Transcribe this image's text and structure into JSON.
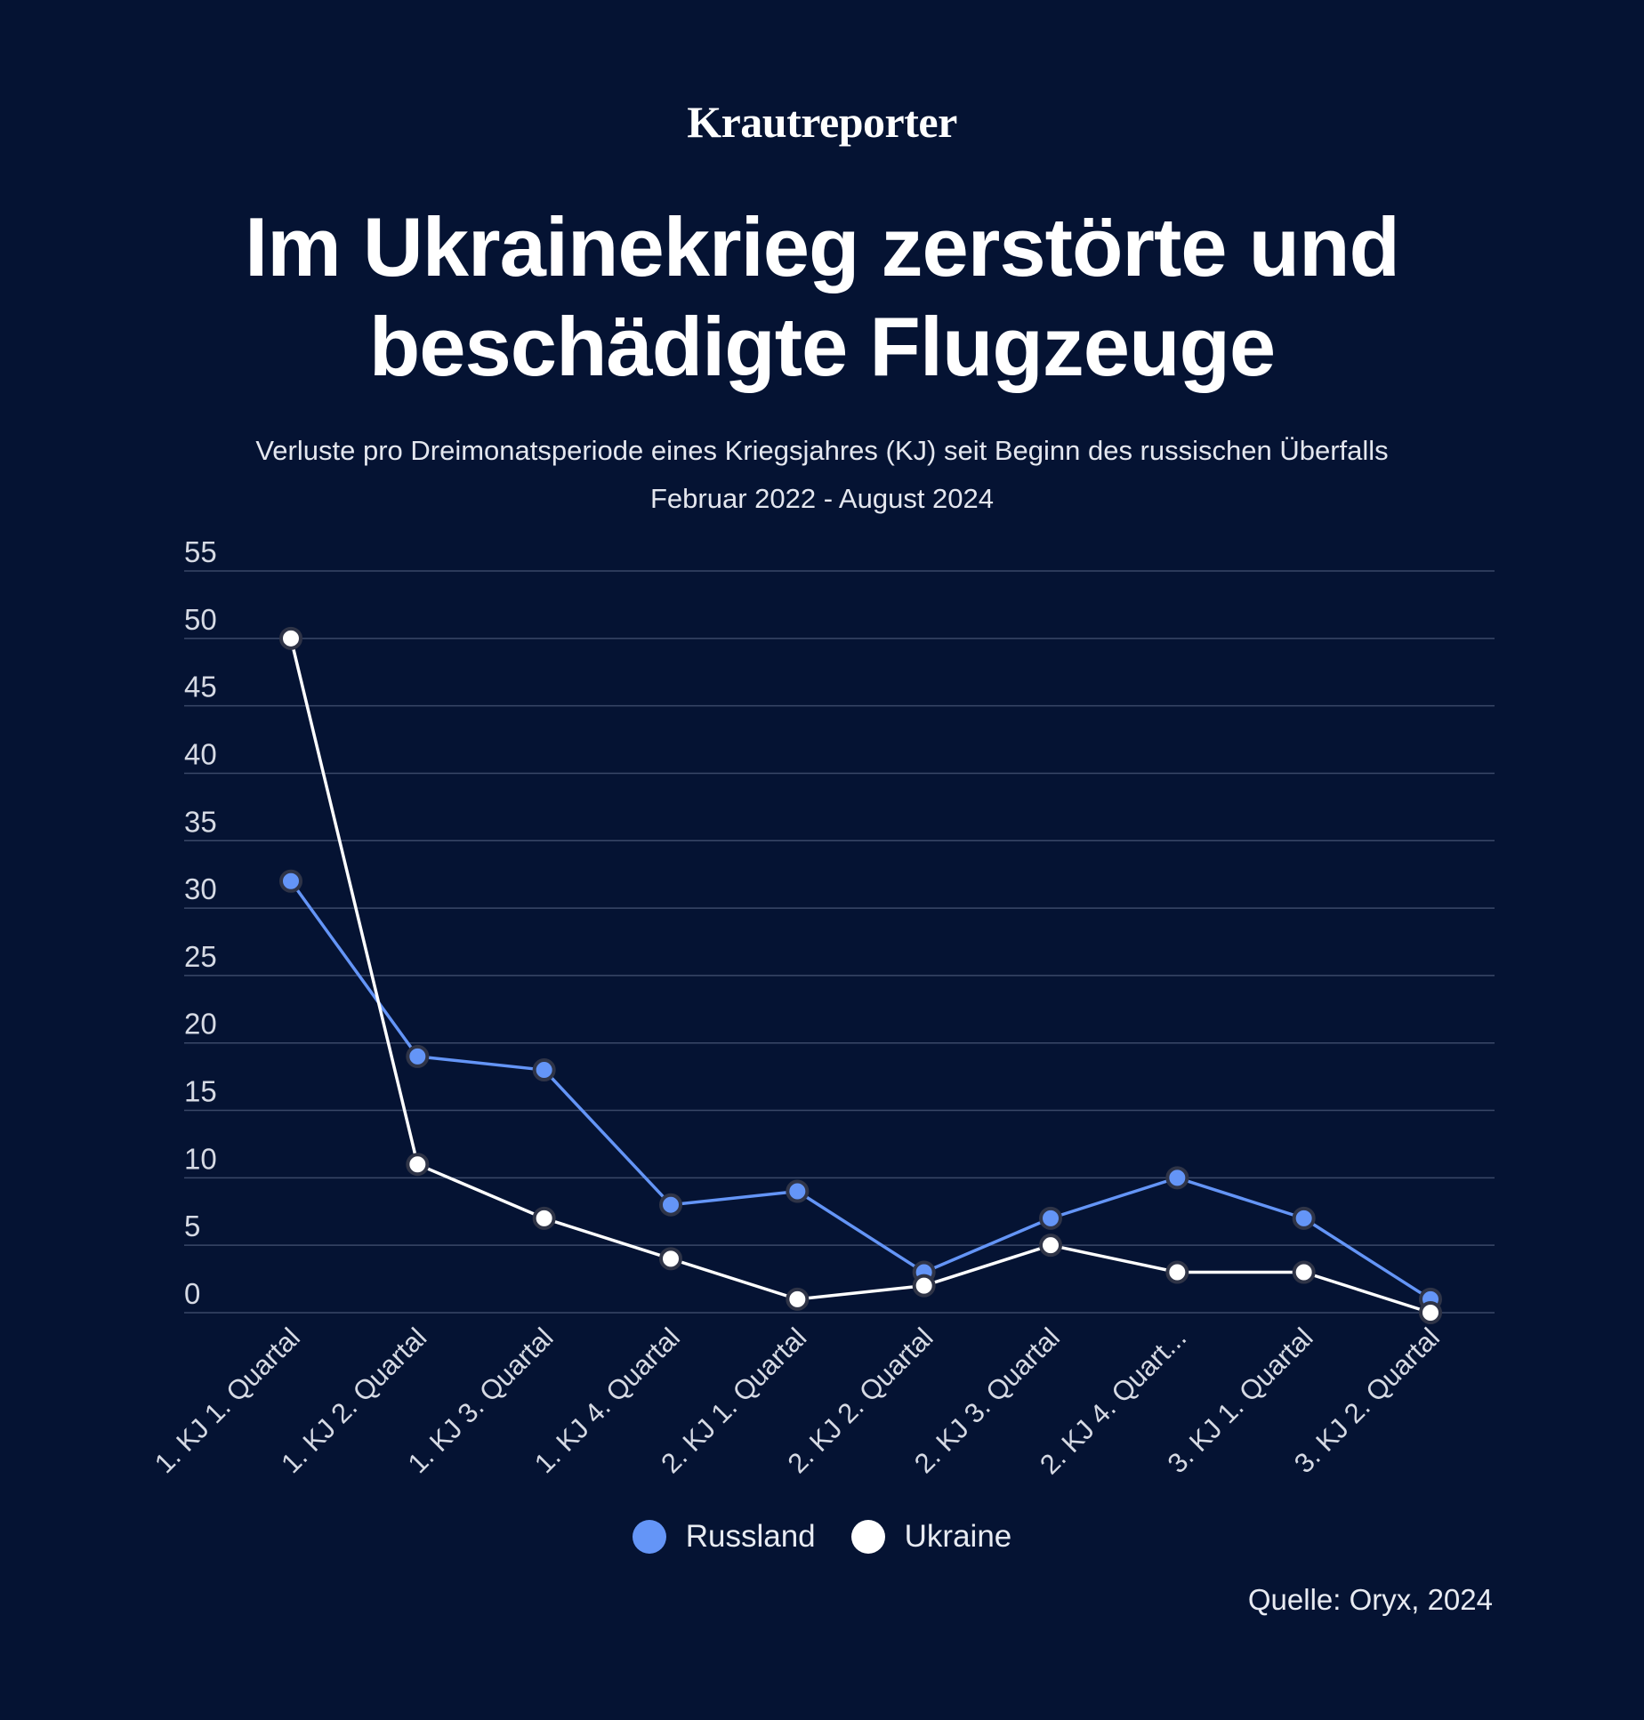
{
  "brand": "Krautreporter",
  "title_line1": "Im Ukrainekrieg zerstörte und",
  "title_line2": "beschädigte Flugzeuge",
  "subtitle_line1": "Verluste pro Dreimonatsperiode eines Kriegsjahres (KJ) seit Beginn des russischen Überfalls",
  "subtitle_line2": "Februar 2022 - August 2024",
  "source": "Quelle: Oryx, 2024",
  "colors": {
    "background": "#051333",
    "russland": "#6495f7",
    "ukraine": "#ffffff",
    "grid": "#3a4868",
    "marker_stroke": "#2f3447"
  },
  "chart_data": {
    "type": "line",
    "title": "Im Ukrainekrieg zerstörte und beschädigte Flugzeuge",
    "xlabel": "",
    "ylabel": "",
    "ylim": [
      0,
      55
    ],
    "yticks": [
      0,
      5,
      10,
      15,
      20,
      25,
      30,
      35,
      40,
      45,
      50,
      55
    ],
    "grid": true,
    "legend_position": "bottom-center",
    "categories": [
      "1. KJ 1. Quartal",
      "1. KJ 2. Quartal",
      "1. KJ 3. Quartal",
      "1. KJ 4. Quartal",
      "2. KJ 1. Quartal",
      "2. KJ 2. Quartal",
      "2. KJ 3. Quartal",
      "2. KJ 4. Quart...",
      "3. KJ 1. Quartal",
      "3. KJ 2. Quartal"
    ],
    "series": [
      {
        "name": "Russland",
        "values": [
          32,
          19,
          18,
          8,
          9,
          3,
          7,
          10,
          7,
          1
        ]
      },
      {
        "name": "Ukraine",
        "values": [
          50,
          11,
          7,
          4,
          1,
          2,
          5,
          3,
          3,
          0
        ]
      }
    ]
  }
}
